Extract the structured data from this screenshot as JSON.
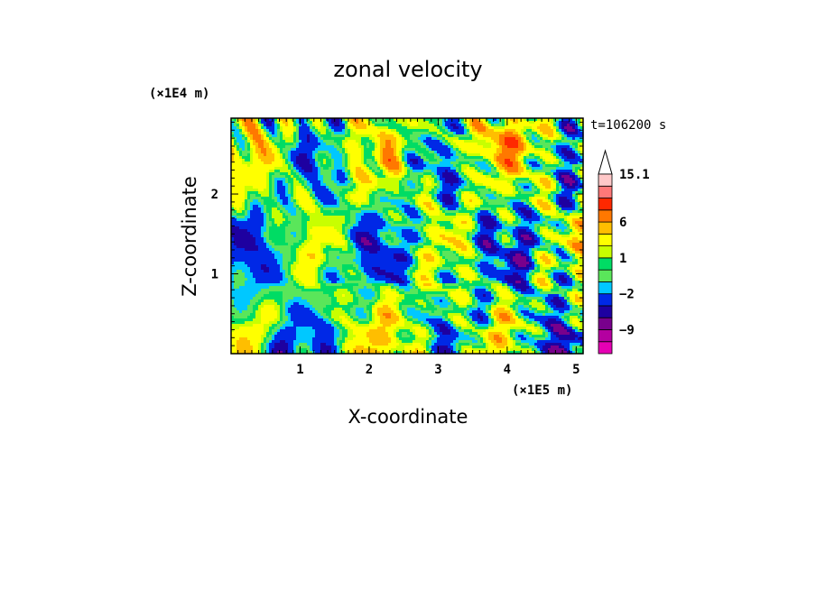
{
  "chart_data": {
    "type": "heatmap",
    "title": "zonal velocity",
    "xlabel": "X-coordinate",
    "ylabel": "Z-coordinate",
    "x_unit": "(×1E5 m)",
    "y_unit": "(×1E4 m)",
    "time_label": "t=106200 s",
    "xlim": [
      0,
      5.1
    ],
    "ylim": [
      0,
      2.95
    ],
    "x_ticks": [
      "1",
      "2",
      "3",
      "4",
      "5"
    ],
    "x_tick_values": [
      1,
      2,
      3,
      4,
      5
    ],
    "y_ticks": [
      "1",
      "2"
    ],
    "y_tick_values": [
      1,
      2
    ],
    "colorbar": {
      "levels": [
        -15,
        -12,
        -9,
        -6,
        -4,
        -2,
        -1,
        0,
        1,
        2,
        4,
        6,
        9,
        12,
        15.1
      ],
      "colors": [
        "#e600b4",
        "#b400a0",
        "#78008c",
        "#1e00a0",
        "#0028e6",
        "#00c8ff",
        "#5ae65a",
        "#00dc64",
        "#c8ff00",
        "#ffff00",
        "#ffbe00",
        "#ff7800",
        "#ff2800",
        "#ff7878",
        "#ffc8c8"
      ],
      "labels": [
        "15.1",
        "6",
        "1",
        "−2",
        "−9"
      ],
      "label_values": [
        15.1,
        6,
        1,
        -2,
        -9
      ]
    },
    "colors": {
      "pos_strong": "#ff7800",
      "pos_weak": "#ffff00",
      "neg_weak": "#00dc64",
      "neg_strong": "#0028e6"
    }
  }
}
